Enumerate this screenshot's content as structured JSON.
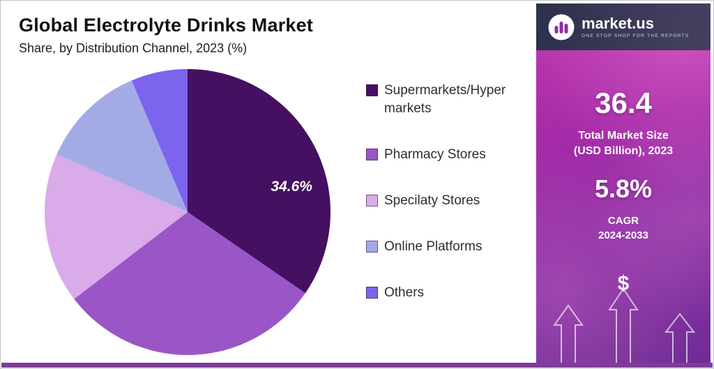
{
  "header": {
    "title": "Global Electrolyte Drinks Market",
    "subtitle": "Share, by Distribution Channel, 2023 (%)"
  },
  "chart_data": {
    "type": "pie",
    "title": "Global Electrolyte Drinks Market",
    "subtitle": "Share, by Distribution Channel, 2023 (%)",
    "categories": [
      "Supermarkets/Hyper markets",
      "Pharmacy Stores",
      "Specilaty Stores",
      "Online Platforms",
      "Others"
    ],
    "values": [
      34.6,
      30.0,
      17.0,
      12.0,
      6.4
    ],
    "colors": [
      "#451061",
      "#9a56c6",
      "#d9abe9",
      "#a3abe6",
      "#7c64ee"
    ],
    "data_label": {
      "text": "34.6%",
      "slice_index": 0
    },
    "legend_position": "right",
    "start_angle_deg": 0,
    "direction": "clockwise",
    "units": "%"
  },
  "sidebar": {
    "brand": {
      "name": "market.us",
      "tagline": "ONE STOP SHOP FOR THE REPORTS"
    },
    "market_size": {
      "value": "36.4",
      "label_line1": "Total Market Size",
      "label_line2": "(USD Billion), 2023"
    },
    "cagr": {
      "value": "5.8%",
      "label_line1": "CAGR",
      "label_line2": "2024-2033"
    },
    "dollar_icon": "$"
  },
  "theme": {
    "bottom_bar": "#7e3c99",
    "panel_gradient_top": "#c13bb0",
    "panel_gradient_bottom": "#6f2d96"
  }
}
